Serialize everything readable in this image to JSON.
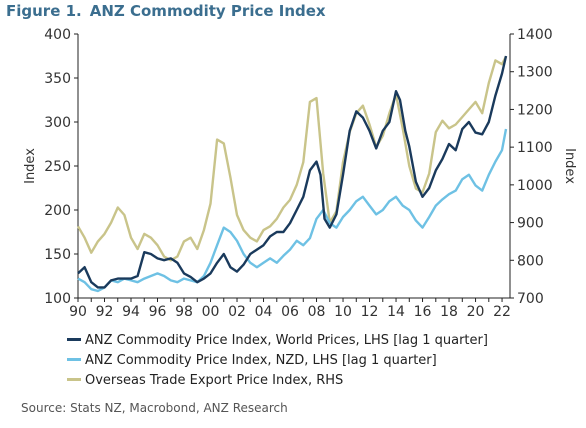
{
  "figure": {
    "number": "Figure 1.",
    "title": "ANZ Commodity Price Index",
    "source": "Source: Stats NZ, Macrobond, ANZ Research"
  },
  "colors": {
    "world": "#1a3a5c",
    "nzd": "#6ec1e4",
    "export": "#c9c48a",
    "axis": "#222222",
    "title": "#3b6e8f"
  },
  "chart_data": {
    "type": "line",
    "x_tick_labels": [
      "90",
      "92",
      "94",
      "96",
      "98",
      "00",
      "02",
      "04",
      "06",
      "08",
      "10",
      "12",
      "14",
      "16",
      "18",
      "20",
      "22"
    ],
    "xlim": [
      1990,
      2022.6
    ],
    "y_left": {
      "label": "Index",
      "lim": [
        100,
        400
      ],
      "ticks": [
        100,
        150,
        200,
        250,
        300,
        350,
        400
      ]
    },
    "y_right": {
      "label": "Index",
      "lim": [
        700,
        1400
      ],
      "ticks": [
        700,
        800,
        900,
        1000,
        1100,
        1200,
        1300,
        1400
      ]
    },
    "grid": false,
    "legend_position": "bottom",
    "series": [
      {
        "name": "ANZ Commodity Price Index, World Prices, LHS [lag 1 quarter]",
        "axis": "left",
        "color": "#1a3a5c",
        "x": [
          1990,
          1990.5,
          1991,
          1991.5,
          1992,
          1992.5,
          1993,
          1993.5,
          1994,
          1994.5,
          1995,
          1995.5,
          1996,
          1996.5,
          1997,
          1997.5,
          1998,
          1998.5,
          1999,
          1999.5,
          2000,
          2000.5,
          2001,
          2001.5,
          2002,
          2002.5,
          2003,
          2003.5,
          2004,
          2004.5,
          2005,
          2005.5,
          2006,
          2006.5,
          2007,
          2007.5,
          2008,
          2008.3,
          2008.6,
          2009,
          2009.5,
          2010,
          2010.5,
          2011,
          2011.5,
          2012,
          2012.5,
          2013,
          2013.5,
          2014,
          2014.3,
          2014.7,
          2015,
          2015.5,
          2016,
          2016.5,
          2017,
          2017.5,
          2018,
          2018.5,
          2019,
          2019.5,
          2020,
          2020.5,
          2021,
          2021.5,
          2022,
          2022.3
        ],
        "values": [
          128,
          135,
          118,
          112,
          112,
          120,
          122,
          122,
          122,
          125,
          152,
          150,
          145,
          143,
          145,
          140,
          128,
          124,
          118,
          122,
          128,
          140,
          150,
          135,
          130,
          138,
          150,
          155,
          160,
          170,
          175,
          175,
          185,
          200,
          215,
          245,
          255,
          240,
          190,
          180,
          195,
          240,
          290,
          312,
          305,
          290,
          270,
          290,
          300,
          335,
          325,
          290,
          272,
          232,
          215,
          225,
          245,
          258,
          275,
          268,
          292,
          300,
          288,
          286,
          300,
          330,
          355,
          375
        ]
      },
      {
        "name": "ANZ Commodity Price Index, NZD, LHS [lag 1 quarter]",
        "axis": "left",
        "color": "#6ec1e4",
        "x": [
          1990,
          1990.5,
          1991,
          1991.5,
          1992,
          1992.5,
          1993,
          1993.5,
          1994,
          1994.5,
          1995,
          1995.5,
          1996,
          1996.5,
          1997,
          1997.5,
          1998,
          1998.5,
          1999,
          1999.5,
          2000,
          2000.5,
          2001,
          2001.5,
          2002,
          2002.5,
          2003,
          2003.5,
          2004,
          2004.5,
          2005,
          2005.5,
          2006,
          2006.5,
          2007,
          2007.5,
          2008,
          2008.5,
          2009,
          2009.5,
          2010,
          2010.5,
          2011,
          2011.5,
          2012,
          2012.5,
          2013,
          2013.5,
          2014,
          2014.5,
          2015,
          2015.5,
          2016,
          2016.5,
          2017,
          2017.5,
          2018,
          2018.5,
          2019,
          2019.5,
          2020,
          2020.5,
          2021,
          2021.5,
          2022,
          2022.3
        ],
        "values": [
          122,
          118,
          110,
          108,
          112,
          120,
          118,
          122,
          120,
          118,
          122,
          125,
          128,
          125,
          120,
          118,
          122,
          120,
          118,
          125,
          140,
          160,
          180,
          175,
          165,
          150,
          140,
          135,
          140,
          145,
          140,
          148,
          155,
          165,
          160,
          168,
          190,
          200,
          185,
          180,
          192,
          200,
          210,
          215,
          205,
          195,
          200,
          210,
          215,
          205,
          200,
          188,
          180,
          192,
          205,
          212,
          218,
          222,
          235,
          240,
          228,
          222,
          240,
          255,
          268,
          292
        ]
      },
      {
        "name": "Overseas Trade Export Price Index, RHS",
        "axis": "right",
        "color": "#c9c48a",
        "x": [
          1990,
          1990.5,
          1991,
          1991.5,
          1992,
          1992.5,
          1993,
          1993.5,
          1994,
          1994.5,
          1995,
          1995.5,
          1996,
          1996.5,
          1997,
          1997.5,
          1998,
          1998.5,
          1999,
          1999.5,
          2000,
          2000.5,
          2001,
          2001.5,
          2002,
          2002.5,
          2003,
          2003.5,
          2004,
          2004.5,
          2005,
          2005.5,
          2006,
          2006.5,
          2007,
          2007.5,
          2008,
          2008.5,
          2009,
          2009.5,
          2010,
          2010.5,
          2011,
          2011.5,
          2012,
          2012.5,
          2013,
          2013.5,
          2014,
          2014.5,
          2015,
          2015.5,
          2016,
          2016.5,
          2017,
          2017.5,
          2018,
          2018.5,
          2019,
          2019.5,
          2020,
          2020.5,
          2021,
          2021.5,
          2022,
          2022.3
        ],
        "values": [
          890,
          860,
          820,
          850,
          870,
          900,
          940,
          920,
          860,
          830,
          870,
          860,
          840,
          810,
          800,
          810,
          850,
          860,
          830,
          880,
          950,
          1120,
          1110,
          1020,
          920,
          880,
          860,
          850,
          880,
          890,
          910,
          940,
          960,
          1000,
          1060,
          1220,
          1230,
          1030,
          900,
          930,
          1060,
          1140,
          1190,
          1210,
          1160,
          1100,
          1130,
          1190,
          1240,
          1150,
          1050,
          990,
          980,
          1030,
          1140,
          1170,
          1150,
          1160,
          1180,
          1200,
          1220,
          1190,
          1270,
          1330,
          1320,
          1340
        ]
      }
    ]
  }
}
